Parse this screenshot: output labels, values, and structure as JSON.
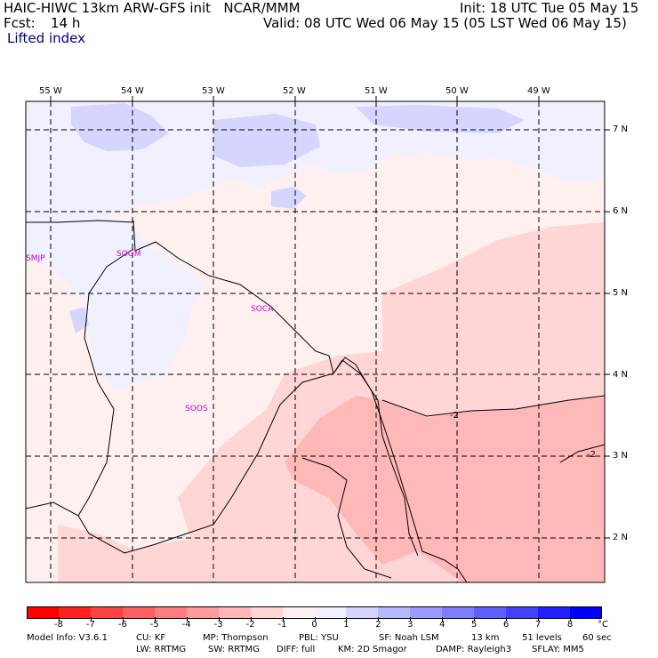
{
  "header": {
    "title_left": "HAIC-HIWC 13km ARW-GFS init   NCAR/MMM",
    "init": "Init: 18 UTC Tue 05 May 15",
    "fcst_label": "Fcst:",
    "fcst_value": "14 h",
    "valid": "Valid: 08 UTC Wed 06 May 15 (05 LST Wed 06 May 15)",
    "field": "Lifted index"
  },
  "map": {
    "lon_labels": [
      "55 W",
      "54 W",
      "53 W",
      "52 W",
      "51 W",
      "50 W",
      "49 W"
    ],
    "lat_labels": [
      "7 N",
      "6 N",
      "5 N",
      "4 N",
      "3 N",
      "2 N"
    ],
    "stations": [
      "SMJP",
      "SOGM",
      "SOCA",
      "SOOS"
    ],
    "contour_labels": [
      "-2",
      "-2"
    ]
  },
  "colorbar": {
    "unit": "°C",
    "labels": [
      "-8",
      "-7",
      "-6",
      "-5",
      "-4",
      "-3",
      "-2",
      "-1",
      "0",
      "1",
      "2",
      "3",
      "4",
      "5",
      "6",
      "7",
      "8"
    ],
    "colors": [
      "#ff0000",
      "#ff2121",
      "#ff4141",
      "#ff5f5f",
      "#ff7d7d",
      "#ff9b9b",
      "#ffb8b8",
      "#ffd5d5",
      "#fff0f0",
      "#f0f0ff",
      "#d5d5ff",
      "#b8b8ff",
      "#9b9bff",
      "#7d7dff",
      "#5f5fff",
      "#4141ff",
      "#2121ff",
      "#0000ff"
    ]
  },
  "footer": {
    "line1": {
      "model": "Model Info: V3.6.1",
      "cu": "CU: KF",
      "mp": "MP: Thompson",
      "pbl": "PBL: YSU",
      "sf": "SF: Noah LSM",
      "res": "13 km",
      "levels": "51 levels",
      "dt": "60 sec"
    },
    "line2": {
      "lw": "LW: RRTMG",
      "sw": "SW: RRTMG",
      "diff": "DIFF: full",
      "km": "KM: 2D Smagor",
      "damp": "DAMP: Rayleigh3",
      "sflay": "SFLAY: MM5"
    }
  },
  "colors": {
    "station_text": "#cc00cc",
    "header_blue": "#000080"
  }
}
